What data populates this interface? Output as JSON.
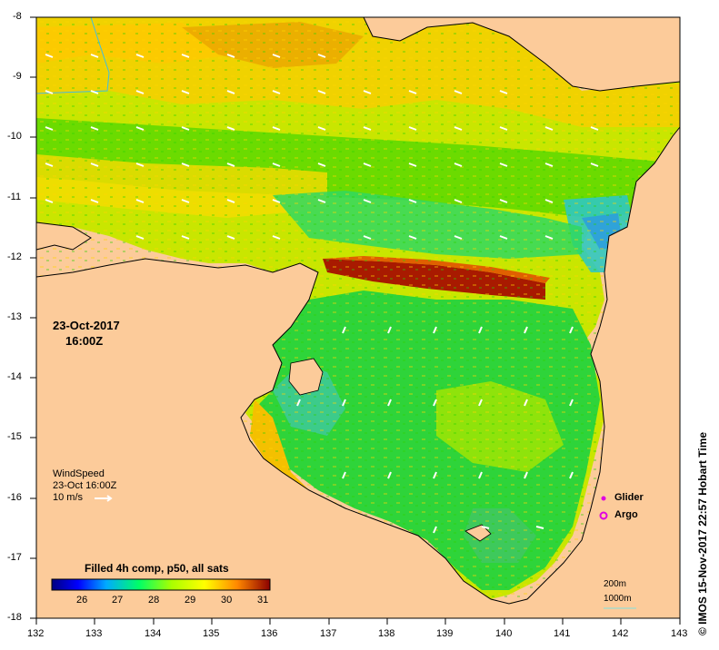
{
  "map": {
    "date_line1": "23-Oct-2017",
    "date_line2": "16:00Z",
    "lon_ticks": [
      "132",
      "133",
      "134",
      "135",
      "136",
      "137",
      "138",
      "139",
      "140",
      "141",
      "142",
      "143"
    ],
    "lat_ticks": [
      "-8",
      "-9",
      "-10",
      "-11",
      "-12",
      "-13",
      "-14",
      "-15",
      "-16",
      "-17",
      "-18"
    ],
    "wind": {
      "title": "WindSpeed",
      "time": "23-Oct 16:00Z",
      "ref": "10 m/s"
    },
    "colorbar": {
      "title": "Filled 4h comp, p50, all sats",
      "ticks": [
        "26",
        "27",
        "28",
        "29",
        "30",
        "31"
      ]
    },
    "legend": {
      "glider": "Glider",
      "argo": "Argo"
    },
    "scale": {
      "depth1": "200m",
      "depth2": "1000m"
    },
    "side_label": "© IMOS 15-Nov-2017 22:57 Hobart Time",
    "colors": {
      "land": "#fccb9a",
      "glider": "#e000e0",
      "argo": "#e000e0",
      "depth_contour": "#7fe0e0"
    }
  }
}
